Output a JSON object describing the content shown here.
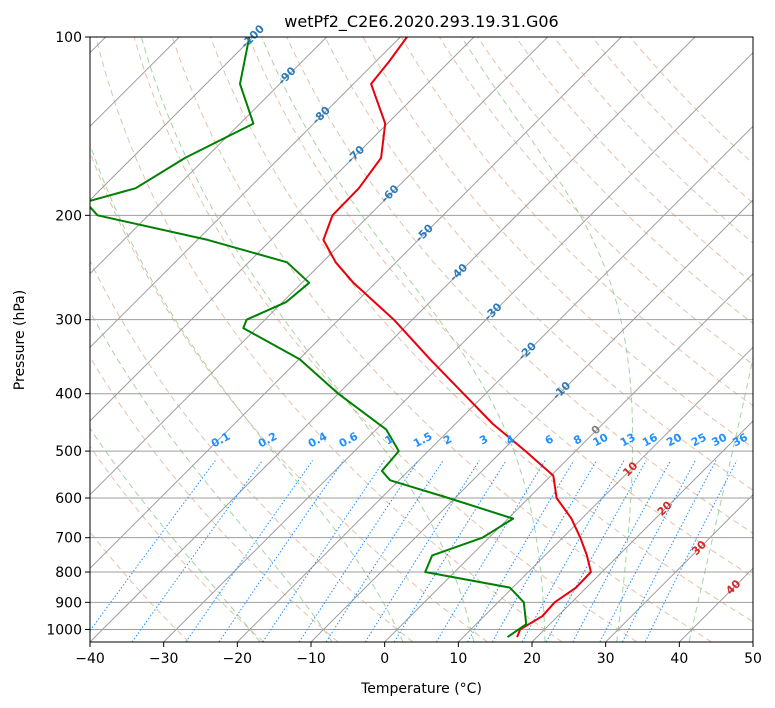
{
  "chart_data": {
    "type": "line",
    "title": "wetPf2_C2E6.2020.293.19.31.G06",
    "xlabel": "Temperature (°C)",
    "ylabel": "Pressure (hPa)",
    "xlim": [
      -40,
      50
    ],
    "ylim": [
      1050,
      100
    ],
    "y_scale": "log",
    "skew": 35,
    "x_ticks": [
      -40,
      -30,
      -20,
      -10,
      0,
      10,
      20,
      30,
      40,
      50
    ],
    "x_tick_labels": [
      "−40",
      "−30",
      "−20",
      "−10",
      "0",
      "10",
      "20",
      "30",
      "40",
      "50"
    ],
    "y_ticks": [
      100,
      200,
      300,
      400,
      500,
      600,
      700,
      800,
      900,
      1000
    ],
    "y_tick_labels": [
      "100",
      "200",
      "300",
      "400",
      "500",
      "600",
      "700",
      "800",
      "900",
      "1000"
    ],
    "grid": true,
    "series": [
      {
        "role": "temperature",
        "color": "#e8000b",
        "points": [
          [
            1030,
            17.3
          ],
          [
            1000,
            16.7
          ],
          [
            950,
            17.9
          ],
          [
            900,
            17.7
          ],
          [
            850,
            18.6
          ],
          [
            800,
            18.5
          ],
          [
            750,
            15.7
          ],
          [
            700,
            12.4
          ],
          [
            650,
            8.6
          ],
          [
            600,
            3.8
          ],
          [
            550,
            0.3
          ],
          [
            500,
            -6.8
          ],
          [
            450,
            -14.9
          ],
          [
            400,
            -23.0
          ],
          [
            350,
            -32.2
          ],
          [
            300,
            -42.5
          ],
          [
            260,
            -53.0
          ],
          [
            240,
            -58.2
          ],
          [
            220,
            -62.9
          ],
          [
            200,
            -65.0
          ],
          [
            180,
            -65.1
          ],
          [
            160,
            -66.2
          ],
          [
            140,
            -70.3
          ],
          [
            120,
            -77.6
          ],
          [
            110,
            -78.2
          ],
          [
            100,
            -79.1
          ]
        ]
      },
      {
        "role": "dewpoint",
        "color": "#008000",
        "points": [
          [
            1030,
            16.0
          ],
          [
            980,
            16.8
          ],
          [
            900,
            13.5
          ],
          [
            850,
            9.6
          ],
          [
            800,
            -4.0
          ],
          [
            750,
            -5.3
          ],
          [
            700,
            -0.9
          ],
          [
            650,
            0.7
          ],
          [
            600,
            -10.9
          ],
          [
            560,
            -21.2
          ],
          [
            540,
            -23.6
          ],
          [
            500,
            -24.0
          ],
          [
            460,
            -28.6
          ],
          [
            400,
            -40.0
          ],
          [
            350,
            -49.9
          ],
          [
            310,
            -61.8
          ],
          [
            300,
            -62.5
          ],
          [
            280,
            -59.5
          ],
          [
            260,
            -59.0
          ],
          [
            240,
            -64.8
          ],
          [
            220,
            -78.6
          ],
          [
            200,
            -96.9
          ],
          [
            190,
            -100.3
          ],
          [
            180,
            -95.4
          ],
          [
            160,
            -92.8
          ],
          [
            140,
            -88.2
          ],
          [
            120,
            -95.4
          ],
          [
            100,
            -100.5
          ]
        ]
      }
    ],
    "reference_lines": {
      "dry_adiabats_C": [
        -30,
        -20,
        -10,
        0,
        10,
        20,
        30,
        40,
        50,
        60,
        70,
        80,
        90,
        100,
        110,
        120,
        130,
        140,
        150,
        160
      ],
      "moist_adiabats_C": [
        -20,
        -10,
        0,
        10,
        20,
        30,
        40
      ],
      "mixing_ratios_gkg": [
        0.1,
        0.2,
        0.4,
        0.6,
        1,
        1.5,
        2,
        3,
        4,
        6,
        8,
        10,
        13,
        16,
        20,
        25,
        30,
        36
      ]
    },
    "annotations": {
      "isotherm_labels": [
        "-100",
        "-90",
        "-80",
        "-70",
        "-60",
        "-50",
        "-40",
        "-30",
        "-20",
        "-10",
        "0",
        "10",
        "20",
        "30",
        "40"
      ],
      "isotherm_label_values": [
        -100,
        -90,
        -80,
        -70,
        -60,
        -50,
        -40,
        -30,
        -20,
        -10,
        0,
        10,
        20,
        30,
        40
      ],
      "mixing_ratio_labels": [
        "0.1",
        "0.2",
        "0.4",
        "0.6",
        "1",
        "1.5",
        "2",
        "3",
        "4",
        "6",
        "8",
        "10",
        "13",
        "16",
        "20",
        "25",
        "30",
        "36"
      ],
      "colors": {
        "cold": "#2b7bb9",
        "zero": "#808080",
        "warm": "#d62728",
        "mixing": "#1e90ff"
      }
    }
  }
}
